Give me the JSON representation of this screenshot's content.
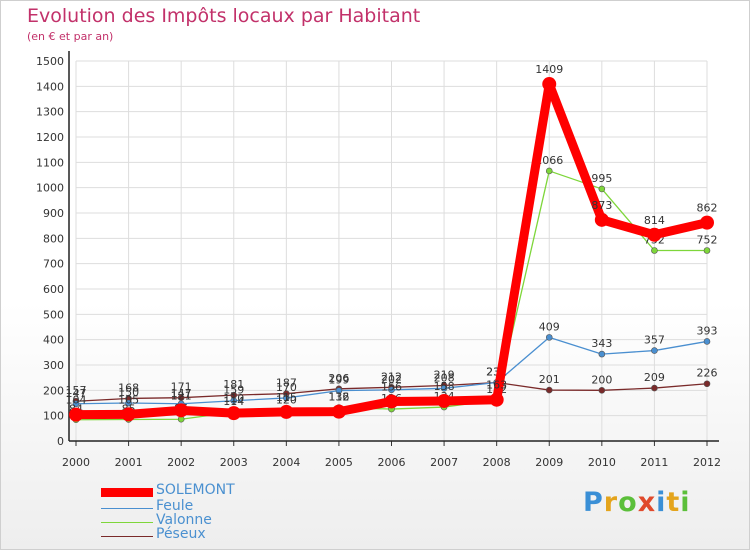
{
  "header": {
    "title": "Evolution des Impôts locaux par Habitant",
    "subtitle": "(en € et par an)"
  },
  "logo": {
    "text": "Proxiti",
    "colors": [
      "#3a8fd6",
      "#e4a41c",
      "#5bbf3a",
      "#e04a2c",
      "#3a8fd6",
      "#e4a41c",
      "#5bbf3a"
    ]
  },
  "chart_data": {
    "type": "line",
    "title": "Evolution des Impôts locaux par Habitant",
    "subtitle": "(en € et par an)",
    "xlabel": "",
    "ylabel": "",
    "ylim": [
      0,
      1500
    ],
    "yticks": [
      0,
      100,
      200,
      300,
      400,
      500,
      600,
      700,
      800,
      900,
      1000,
      1100,
      1200,
      1300,
      1400,
      1500
    ],
    "grid": true,
    "legend_position": "bottom-left",
    "x": [
      "2000",
      "2001",
      "2002",
      "2003",
      "2004",
      "2005",
      "2006",
      "2007",
      "2008",
      "2009",
      "2010",
      "2011",
      "2012"
    ],
    "series": [
      {
        "name": "Péseux",
        "color": "#7a2a2a",
        "values": [
          157,
          168,
          171,
          181,
          187,
          206,
          212,
          219,
          231,
          201,
          200,
          209,
          226
        ]
      },
      {
        "name": "Feule",
        "color": "#4a8fd0",
        "values": [
          147,
          150,
          147,
          159,
          170,
          199,
          202,
          208,
          231,
          409,
          343,
          357,
          393
        ]
      },
      {
        "name": "Valonne",
        "color": "#7ed63a",
        "values": [
          84,
          85,
          86,
          114,
          120,
          132,
          126,
          134,
          162,
          1066,
          995,
          752,
          752
        ]
      },
      {
        "name": "SOLEMONT",
        "color": "#ff0000",
        "values": [
          104,
          105,
          121,
          110,
          115,
          116,
          156,
          158,
          163,
          1409,
          873,
          814,
          862
        ]
      }
    ]
  },
  "legend": {
    "items": [
      {
        "label": "SOLEMONT",
        "color": "#ff0000"
      },
      {
        "label": "Feule",
        "color": "#4a8fd0"
      },
      {
        "label": "Valonne",
        "color": "#7ed63a"
      },
      {
        "label": "Péseux",
        "color": "#7a2a2a"
      }
    ]
  }
}
